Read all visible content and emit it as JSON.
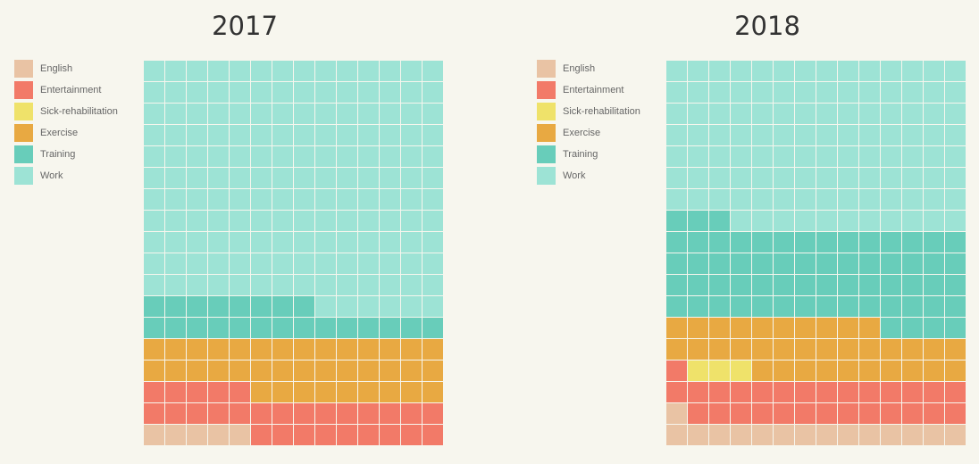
{
  "chart_data": [
    {
      "type": "waffle",
      "title": "2017",
      "rows": 18,
      "columns": 14,
      "fill_order": "bottom-to-top, left-to-right",
      "legend": [
        "English",
        "Entertainment",
        "Sick-rehabilitation",
        "Exercise",
        "Training",
        "Work"
      ],
      "categories": [
        "English",
        "Entertainment",
        "Sick-rehabilitation",
        "Exercise",
        "Training",
        "Work"
      ],
      "values": [
        5,
        28,
        0,
        37,
        22,
        160
      ],
      "colors": [
        "#e9c3a4",
        "#f27a68",
        "#efe26a",
        "#e8a942",
        "#68cdba",
        "#9de3d5"
      ]
    },
    {
      "type": "waffle",
      "title": "2018",
      "rows": 18,
      "columns": 14,
      "fill_order": "bottom-to-top, left-to-right",
      "legend": [
        "English",
        "Entertainment",
        "Sick-rehabilitation",
        "Exercise",
        "Training",
        "Work"
      ],
      "categories": [
        "English",
        "Entertainment",
        "Sick-rehabilitation",
        "Exercise",
        "Training",
        "Work"
      ],
      "values": [
        15,
        28,
        3,
        34,
        63,
        109
      ],
      "colors": [
        "#e9c3a4",
        "#f27a68",
        "#efe26a",
        "#e8a942",
        "#68cdba",
        "#9de3d5"
      ]
    }
  ]
}
